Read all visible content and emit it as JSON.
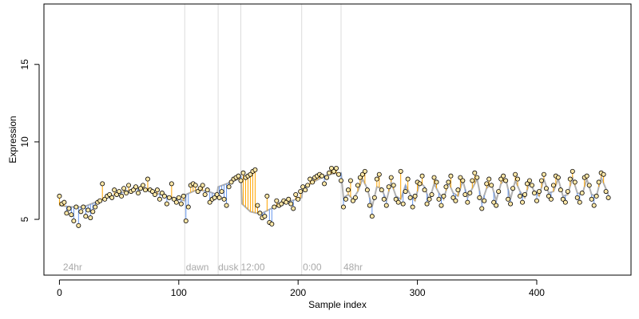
{
  "chart_data": {
    "type": "scatter",
    "title": "",
    "xlabel": "Sample index",
    "ylabel": "Expression",
    "xlim": [
      -13,
      479
    ],
    "ylim": [
      1.4,
      18.9
    ],
    "x_ticks": [
      0,
      100,
      200,
      300,
      400
    ],
    "y_ticks": [
      5,
      10,
      15
    ],
    "grid": false,
    "phase_boundaries": [
      105,
      133,
      152,
      203,
      236
    ],
    "phase_labels": [
      {
        "x": 3,
        "text": "24hr"
      },
      {
        "x": 106,
        "text": "dawn"
      },
      {
        "x": 133,
        "text": "dusk"
      },
      {
        "x": 152,
        "text": "12:00"
      },
      {
        "x": 204,
        "text": "0:00"
      },
      {
        "x": 238,
        "text": "48hr"
      }
    ],
    "colors": {
      "points_fill": "#ffe8a8",
      "points_stroke": "#000000",
      "fitted_curve": "#b0b0b0",
      "residual_above": "#ffa500",
      "residual_below": "#6495ed",
      "boundary_line": "#dcdcdc"
    },
    "series": [
      {
        "points": [
          [
            0,
            6.5
          ],
          [
            2,
            6.0
          ],
          [
            4,
            6.1
          ],
          [
            6,
            5.4
          ],
          [
            8,
            5.7
          ],
          [
            10,
            5.3
          ],
          [
            12,
            4.9
          ],
          [
            14,
            5.8
          ],
          [
            16,
            4.6
          ],
          [
            18,
            5.5
          ],
          [
            20,
            5.8
          ],
          [
            22,
            5.2
          ],
          [
            24,
            5.6
          ],
          [
            26,
            5.1
          ],
          [
            28,
            5.5
          ],
          [
            30,
            5.8
          ],
          [
            32,
            6.1
          ],
          [
            34,
            6.2
          ],
          [
            36,
            7.3
          ],
          [
            38,
            6.3
          ],
          [
            40,
            6.5
          ],
          [
            42,
            6.6
          ],
          [
            44,
            6.4
          ],
          [
            46,
            6.9
          ],
          [
            48,
            6.6
          ],
          [
            50,
            6.8
          ],
          [
            52,
            6.5
          ],
          [
            54,
            7.0
          ],
          [
            56,
            6.7
          ],
          [
            58,
            7.2
          ],
          [
            60,
            6.8
          ],
          [
            62,
            6.9
          ],
          [
            64,
            7.1
          ],
          [
            66,
            6.7
          ],
          [
            68,
            7.0
          ],
          [
            70,
            7.2
          ],
          [
            72,
            6.9
          ],
          [
            74,
            7.6
          ],
          [
            76,
            6.9
          ],
          [
            78,
            6.8
          ],
          [
            80,
            6.6
          ],
          [
            82,
            6.9
          ],
          [
            84,
            6.3
          ],
          [
            86,
            6.7
          ],
          [
            88,
            6.5
          ],
          [
            90,
            6.0
          ],
          [
            92,
            6.4
          ],
          [
            94,
            7.3
          ],
          [
            96,
            6.3
          ],
          [
            98,
            6.1
          ],
          [
            100,
            6.4
          ],
          [
            102,
            6.0
          ],
          [
            104,
            6.5
          ],
          [
            106,
            4.9
          ],
          [
            108,
            5.8
          ],
          [
            110,
            7.2
          ],
          [
            112,
            7.3
          ],
          [
            114,
            7.2
          ],
          [
            116,
            6.8
          ],
          [
            118,
            7.0
          ],
          [
            120,
            7.2
          ],
          [
            122,
            6.6
          ],
          [
            124,
            6.9
          ],
          [
            126,
            6.1
          ],
          [
            128,
            6.3
          ],
          [
            130,
            6.4
          ],
          [
            132,
            6.6
          ],
          [
            134,
            6.4
          ],
          [
            136,
            6.8
          ],
          [
            138,
            6.3
          ],
          [
            140,
            5.9
          ],
          [
            142,
            7.1
          ],
          [
            144,
            7.4
          ],
          [
            146,
            7.6
          ],
          [
            148,
            7.7
          ],
          [
            150,
            7.8
          ],
          [
            152,
            7.5
          ],
          [
            154,
            8.0
          ],
          [
            156,
            7.7
          ],
          [
            158,
            7.8
          ],
          [
            160,
            7.9
          ],
          [
            162,
            8.1
          ],
          [
            164,
            8.2
          ],
          [
            166,
            5.9
          ],
          [
            168,
            5.4
          ],
          [
            170,
            5.1
          ],
          [
            172,
            5.2
          ],
          [
            174,
            6.5
          ],
          [
            176,
            4.8
          ],
          [
            178,
            4.7
          ],
          [
            180,
            5.8
          ],
          [
            182,
            6.2
          ],
          [
            184,
            5.9
          ],
          [
            186,
            6.0
          ],
          [
            188,
            6.2
          ],
          [
            190,
            6.1
          ],
          [
            192,
            6.3
          ],
          [
            194,
            6.0
          ],
          [
            196,
            5.7
          ],
          [
            198,
            6.6
          ],
          [
            200,
            6.3
          ],
          [
            202,
            6.8
          ],
          [
            204,
            7.1
          ],
          [
            206,
            6.9
          ],
          [
            208,
            7.2
          ],
          [
            210,
            7.6
          ],
          [
            212,
            7.4
          ],
          [
            214,
            7.7
          ],
          [
            216,
            7.8
          ],
          [
            218,
            7.9
          ],
          [
            220,
            7.8
          ],
          [
            222,
            7.3
          ],
          [
            224,
            7.7
          ],
          [
            226,
            8.0
          ],
          [
            228,
            8.3
          ],
          [
            230,
            8.1
          ],
          [
            232,
            8.3
          ],
          [
            234,
            7.9
          ],
          [
            236,
            7.5
          ],
          [
            238,
            5.8
          ],
          [
            240,
            6.3
          ],
          [
            242,
            6.9
          ],
          [
            244,
            7.5
          ],
          [
            246,
            6.2
          ],
          [
            248,
            6.4
          ],
          [
            250,
            7.2
          ],
          [
            252,
            7.7
          ],
          [
            254,
            7.9
          ],
          [
            256,
            8.1
          ],
          [
            258,
            6.9
          ],
          [
            260,
            5.9
          ],
          [
            262,
            5.2
          ],
          [
            264,
            6.4
          ],
          [
            266,
            7.6
          ],
          [
            268,
            7.9
          ],
          [
            270,
            6.9
          ],
          [
            272,
            6.3
          ],
          [
            274,
            5.9
          ],
          [
            276,
            7.1
          ],
          [
            278,
            7.7
          ],
          [
            280,
            7.2
          ],
          [
            282,
            6.3
          ],
          [
            284,
            6.1
          ],
          [
            286,
            8.1
          ],
          [
            288,
            6.0
          ],
          [
            290,
            6.8
          ],
          [
            292,
            7.6
          ],
          [
            294,
            6.4
          ],
          [
            296,
            5.8
          ],
          [
            298,
            6.5
          ],
          [
            300,
            7.4
          ],
          [
            302,
            7.3
          ],
          [
            304,
            7.8
          ],
          [
            306,
            6.9
          ],
          [
            308,
            6.0
          ],
          [
            310,
            6.3
          ],
          [
            312,
            6.6
          ],
          [
            314,
            7.7
          ],
          [
            316,
            7.4
          ],
          [
            318,
            6.3
          ],
          [
            320,
            5.9
          ],
          [
            322,
            6.5
          ],
          [
            324,
            7.1
          ],
          [
            326,
            7.4
          ],
          [
            328,
            7.8
          ],
          [
            330,
            6.4
          ],
          [
            332,
            6.2
          ],
          [
            334,
            6.9
          ],
          [
            336,
            7.7
          ],
          [
            338,
            7.5
          ],
          [
            340,
            6.6
          ],
          [
            342,
            6.1
          ],
          [
            344,
            6.7
          ],
          [
            346,
            7.5
          ],
          [
            348,
            8.0
          ],
          [
            350,
            7.7
          ],
          [
            352,
            6.4
          ],
          [
            354,
            5.7
          ],
          [
            356,
            6.2
          ],
          [
            358,
            7.3
          ],
          [
            360,
            7.6
          ],
          [
            362,
            7.2
          ],
          [
            364,
            6.1
          ],
          [
            366,
            5.9
          ],
          [
            368,
            6.8
          ],
          [
            370,
            7.6
          ],
          [
            372,
            7.8
          ],
          [
            374,
            7.5
          ],
          [
            376,
            6.3
          ],
          [
            378,
            6.0
          ],
          [
            380,
            7.0
          ],
          [
            382,
            7.9
          ],
          [
            384,
            7.6
          ],
          [
            386,
            6.5
          ],
          [
            388,
            6.1
          ],
          [
            390,
            6.6
          ],
          [
            392,
            7.3
          ],
          [
            394,
            7.5
          ],
          [
            396,
            7.2
          ],
          [
            398,
            6.7
          ],
          [
            400,
            6.2
          ],
          [
            402,
            6.8
          ],
          [
            404,
            7.5
          ],
          [
            406,
            7.9
          ],
          [
            408,
            7.0
          ],
          [
            410,
            6.5
          ],
          [
            412,
            6.3
          ],
          [
            414,
            7.2
          ],
          [
            416,
            7.8
          ],
          [
            418,
            7.7
          ],
          [
            420,
            6.9
          ],
          [
            422,
            6.3
          ],
          [
            424,
            6.1
          ],
          [
            426,
            6.8
          ],
          [
            428,
            7.6
          ],
          [
            430,
            8.1
          ],
          [
            432,
            7.4
          ],
          [
            434,
            6.4
          ],
          [
            436,
            6.1
          ],
          [
            438,
            6.7
          ],
          [
            440,
            7.7
          ],
          [
            442,
            7.8
          ],
          [
            444,
            7.2
          ],
          [
            446,
            6.3
          ],
          [
            448,
            5.9
          ],
          [
            450,
            6.5
          ],
          [
            452,
            7.4
          ],
          [
            454,
            8.0
          ],
          [
            456,
            7.9
          ],
          [
            458,
            6.8
          ],
          [
            460,
            6.4
          ]
        ],
        "fit": [
          [
            0,
            5.9
          ],
          [
            10,
            5.8
          ],
          [
            20,
            5.8
          ],
          [
            30,
            6.1
          ],
          [
            40,
            6.4
          ],
          [
            50,
            6.7
          ],
          [
            60,
            6.9
          ],
          [
            70,
            7.0
          ],
          [
            80,
            6.7
          ],
          [
            90,
            6.5
          ],
          [
            100,
            6.3
          ],
          [
            105,
            6.2
          ],
          [
            106,
            6.6
          ],
          [
            115,
            6.9
          ],
          [
            125,
            6.8
          ],
          [
            132,
            6.6
          ],
          [
            133,
            7.1
          ],
          [
            140,
            7.3
          ],
          [
            150,
            7.6
          ],
          [
            152,
            7.8
          ],
          [
            153,
            6.0
          ],
          [
            160,
            5.5
          ],
          [
            165,
            5.4
          ],
          [
            170,
            5.4
          ],
          [
            180,
            5.8
          ],
          [
            190,
            6.1
          ],
          [
            203,
            6.4
          ],
          [
            204,
            7.0
          ],
          [
            215,
            7.5
          ],
          [
            225,
            7.9
          ],
          [
            236,
            8.0
          ],
          [
            238,
            6.4
          ],
          [
            242,
            6.6
          ],
          [
            246,
            6.3
          ],
          [
            250,
            6.8
          ],
          [
            254,
            7.6
          ],
          [
            258,
            7.0
          ],
          [
            262,
            5.8
          ],
          [
            266,
            7.1
          ],
          [
            270,
            7.0
          ],
          [
            274,
            6.2
          ],
          [
            278,
            7.4
          ],
          [
            282,
            6.5
          ],
          [
            286,
            6.3
          ],
          [
            290,
            7.2
          ],
          [
            294,
            6.6
          ],
          [
            298,
            6.2
          ],
          [
            302,
            7.4
          ],
          [
            306,
            7.1
          ],
          [
            310,
            6.2
          ],
          [
            314,
            7.3
          ],
          [
            318,
            6.7
          ],
          [
            322,
            6.3
          ],
          [
            326,
            7.4
          ],
          [
            330,
            6.7
          ],
          [
            334,
            6.5
          ],
          [
            338,
            7.5
          ],
          [
            342,
            6.4
          ],
          [
            346,
            7.0
          ],
          [
            350,
            7.6
          ],
          [
            354,
            6.1
          ],
          [
            358,
            7.0
          ],
          [
            362,
            7.3
          ],
          [
            366,
            6.2
          ],
          [
            370,
            7.3
          ],
          [
            374,
            7.6
          ],
          [
            378,
            6.3
          ],
          [
            382,
            7.5
          ],
          [
            386,
            6.8
          ],
          [
            390,
            6.4
          ],
          [
            394,
            7.4
          ],
          [
            398,
            6.8
          ],
          [
            402,
            6.5
          ],
          [
            406,
            7.6
          ],
          [
            410,
            6.7
          ],
          [
            414,
            6.8
          ],
          [
            418,
            7.6
          ],
          [
            422,
            6.5
          ],
          [
            426,
            6.6
          ],
          [
            430,
            7.7
          ],
          [
            434,
            6.7
          ],
          [
            438,
            6.6
          ],
          [
            442,
            7.6
          ],
          [
            446,
            6.6
          ],
          [
            450,
            6.5
          ],
          [
            454,
            7.7
          ],
          [
            460,
            6.6
          ]
        ]
      }
    ]
  }
}
